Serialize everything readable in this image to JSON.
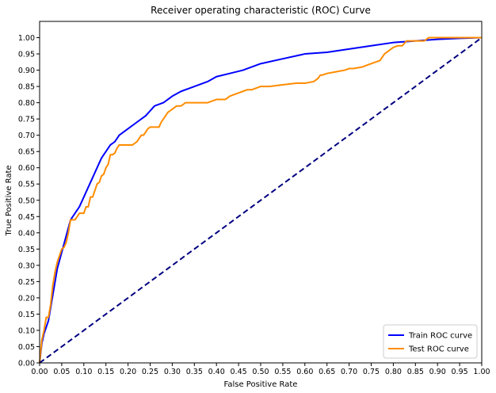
{
  "chart_data": {
    "type": "line",
    "title": "Receiver operating characteristic (ROC) Curve",
    "xlabel": "False Positive Rate",
    "ylabel": "True Positive Rate",
    "xlim": [
      0,
      1
    ],
    "ylim": [
      0,
      1.05
    ],
    "xticks": [
      0.0,
      0.05,
      0.1,
      0.15,
      0.2,
      0.25,
      0.3,
      0.35,
      0.4,
      0.45,
      0.5,
      0.55,
      0.6,
      0.65,
      0.7,
      0.75,
      0.8,
      0.85,
      0.9,
      0.95,
      1.0
    ],
    "xtick_labels": [
      "0.00",
      "0.05",
      "0.10",
      "0.15",
      "0.20",
      "0.25",
      "0.30",
      "0.35",
      "0.40",
      "0.45",
      "0.50",
      "0.55",
      "0.60",
      "0.65",
      "0.70",
      "0.75",
      "0.80",
      "0.85",
      "0.90",
      "0.95",
      "1.00"
    ],
    "yticks": [
      0.0,
      0.05,
      0.1,
      0.15,
      0.2,
      0.25,
      0.3,
      0.35,
      0.4,
      0.45,
      0.5,
      0.55,
      0.6,
      0.65,
      0.7,
      0.75,
      0.8,
      0.85,
      0.9,
      0.95,
      1.0
    ],
    "ytick_labels": [
      "0.00",
      "0.05",
      "0.10",
      "0.15",
      "0.20",
      "0.25",
      "0.30",
      "0.35",
      "0.40",
      "0.45",
      "0.50",
      "0.55",
      "0.60",
      "0.65",
      "0.70",
      "0.75",
      "0.80",
      "0.85",
      "0.90",
      "0.95",
      "1.00"
    ],
    "grid": false,
    "legend_position": "bottom-right",
    "series": [
      {
        "name": "Train ROC curve",
        "color": "#0000ff",
        "dashed": false,
        "x": [
          0,
          0.005,
          0.01,
          0.02,
          0.03,
          0.04,
          0.05,
          0.06,
          0.07,
          0.08,
          0.09,
          0.1,
          0.11,
          0.12,
          0.13,
          0.14,
          0.15,
          0.16,
          0.17,
          0.18,
          0.19,
          0.2,
          0.22,
          0.24,
          0.26,
          0.28,
          0.3,
          0.32,
          0.34,
          0.36,
          0.38,
          0.4,
          0.43,
          0.46,
          0.5,
          0.55,
          0.6,
          0.65,
          0.7,
          0.75,
          0.8,
          0.85,
          0.9,
          0.95,
          1.0
        ],
        "y": [
          0,
          0.06,
          0.09,
          0.13,
          0.21,
          0.29,
          0.34,
          0.39,
          0.44,
          0.46,
          0.48,
          0.51,
          0.54,
          0.57,
          0.6,
          0.63,
          0.65,
          0.67,
          0.68,
          0.7,
          0.71,
          0.72,
          0.74,
          0.76,
          0.79,
          0.8,
          0.82,
          0.835,
          0.845,
          0.855,
          0.865,
          0.88,
          0.89,
          0.9,
          0.92,
          0.935,
          0.95,
          0.955,
          0.965,
          0.975,
          0.985,
          0.99,
          0.995,
          0.998,
          1.0
        ]
      },
      {
        "name": "Test ROC curve",
        "color": "#ff8c00",
        "dashed": false,
        "x": [
          0,
          0.005,
          0.01,
          0.015,
          0.02,
          0.025,
          0.03,
          0.035,
          0.04,
          0.045,
          0.05,
          0.055,
          0.06,
          0.065,
          0.07,
          0.08,
          0.09,
          0.1,
          0.105,
          0.11,
          0.115,
          0.12,
          0.125,
          0.13,
          0.135,
          0.14,
          0.145,
          0.15,
          0.155,
          0.16,
          0.165,
          0.17,
          0.175,
          0.18,
          0.19,
          0.2,
          0.21,
          0.22,
          0.225,
          0.23,
          0.235,
          0.24,
          0.245,
          0.25,
          0.26,
          0.27,
          0.275,
          0.28,
          0.285,
          0.29,
          0.295,
          0.3,
          0.31,
          0.32,
          0.33,
          0.34,
          0.35,
          0.38,
          0.4,
          0.42,
          0.43,
          0.44,
          0.45,
          0.46,
          0.47,
          0.48,
          0.49,
          0.5,
          0.52,
          0.55,
          0.58,
          0.6,
          0.62,
          0.63,
          0.635,
          0.64,
          0.65,
          0.67,
          0.69,
          0.7,
          0.71,
          0.73,
          0.75,
          0.76,
          0.77,
          0.78,
          0.79,
          0.8,
          0.81,
          0.82,
          0.83,
          0.85,
          0.87,
          0.88,
          0.9,
          0.95,
          1.0
        ],
        "y": [
          0,
          0.07,
          0.1,
          0.14,
          0.14,
          0.18,
          0.24,
          0.28,
          0.31,
          0.33,
          0.35,
          0.355,
          0.37,
          0.4,
          0.44,
          0.44,
          0.46,
          0.46,
          0.48,
          0.48,
          0.51,
          0.51,
          0.53,
          0.55,
          0.555,
          0.575,
          0.58,
          0.6,
          0.61,
          0.64,
          0.64,
          0.645,
          0.66,
          0.67,
          0.67,
          0.67,
          0.67,
          0.68,
          0.69,
          0.7,
          0.7,
          0.71,
          0.72,
          0.725,
          0.725,
          0.725,
          0.74,
          0.75,
          0.76,
          0.77,
          0.775,
          0.78,
          0.79,
          0.79,
          0.8,
          0.8,
          0.8,
          0.8,
          0.81,
          0.81,
          0.82,
          0.825,
          0.83,
          0.835,
          0.84,
          0.84,
          0.845,
          0.85,
          0.85,
          0.855,
          0.86,
          0.86,
          0.865,
          0.875,
          0.885,
          0.885,
          0.89,
          0.895,
          0.9,
          0.905,
          0.905,
          0.91,
          0.92,
          0.925,
          0.93,
          0.95,
          0.96,
          0.97,
          0.975,
          0.975,
          0.99,
          0.99,
          0.99,
          1.0,
          1.0,
          1.0,
          1.0
        ]
      },
      {
        "name": "",
        "color": "#000080",
        "dashed": true,
        "x": [
          0,
          1
        ],
        "y": [
          0,
          1
        ]
      }
    ]
  }
}
